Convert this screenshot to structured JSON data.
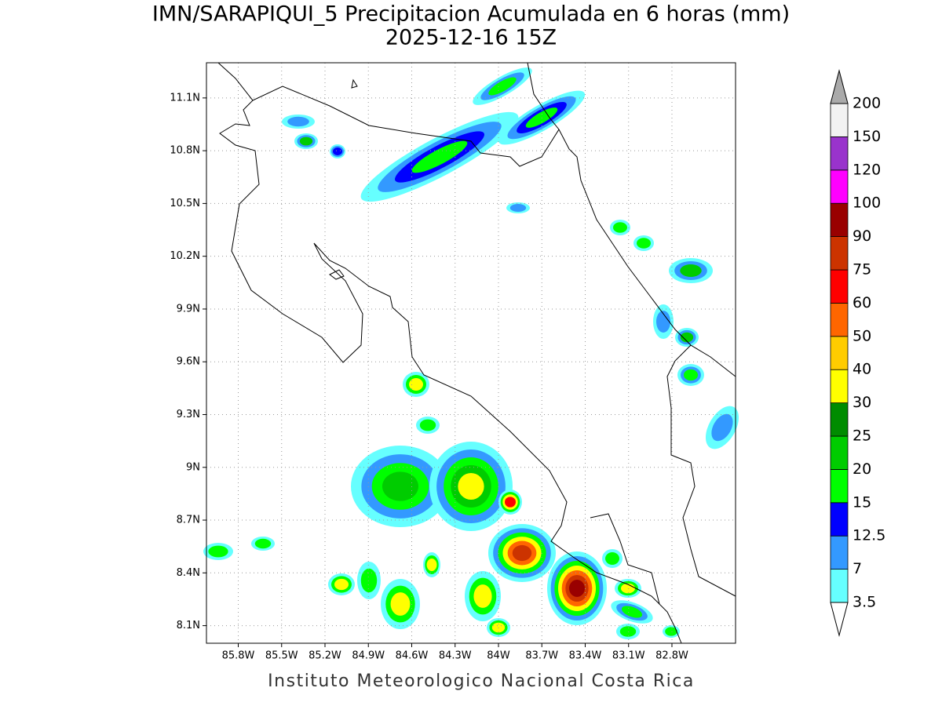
{
  "title": "IMN/SARAPIQUI_5 Precipitacion Acumulada en 6 horas (mm)",
  "subtitle": "2025-12-16 15Z",
  "footer": "Instituto Meteorologico Nacional Costa Rica",
  "xlim": [
    -86.02,
    -82.36
  ],
  "ylim": [
    8.0,
    11.3
  ],
  "xticks": [
    {
      "value": -85.8,
      "label": "85.8W"
    },
    {
      "value": -85.5,
      "label": "85.5W"
    },
    {
      "value": -85.2,
      "label": "85.2W"
    },
    {
      "value": -84.9,
      "label": "84.9W"
    },
    {
      "value": -84.6,
      "label": "84.6W"
    },
    {
      "value": -84.3,
      "label": "84.3W"
    },
    {
      "value": -84.0,
      "label": "84W"
    },
    {
      "value": -83.7,
      "label": "83.7W"
    },
    {
      "value": -83.4,
      "label": "83.4W"
    },
    {
      "value": -83.1,
      "label": "83.1W"
    },
    {
      "value": -82.8,
      "label": "82.8W"
    }
  ],
  "yticks": [
    {
      "value": 8.1,
      "label": "8.1N"
    },
    {
      "value": 8.4,
      "label": "8.4N"
    },
    {
      "value": 8.7,
      "label": "8.7N"
    },
    {
      "value": 9.0,
      "label": "9N"
    },
    {
      "value": 9.3,
      "label": "9.3N"
    },
    {
      "value": 9.6,
      "label": "9.6N"
    },
    {
      "value": 9.9,
      "label": "9.9N"
    },
    {
      "value": 10.2,
      "label": "10.2N"
    },
    {
      "value": 10.5,
      "label": "10.5N"
    },
    {
      "value": 10.8,
      "label": "10.8N"
    },
    {
      "value": 11.1,
      "label": "11.1N"
    }
  ],
  "levels": [
    3.5,
    7,
    12.5,
    15,
    20,
    25,
    30,
    40,
    50,
    60,
    75,
    90,
    100,
    120,
    150,
    200
  ],
  "colors": [
    "#66ffff",
    "#3399ff",
    "#0000ff",
    "#00ff00",
    "#00cc00",
    "#008c00",
    "#ffff00",
    "#ffcc00",
    "#ff6600",
    "#ff0000",
    "#cc3300",
    "#990000",
    "#ff00ff",
    "#9933cc",
    "#f2f2f2"
  ],
  "over_color": "#aaaaaa",
  "under_color": "#ffffff"
}
